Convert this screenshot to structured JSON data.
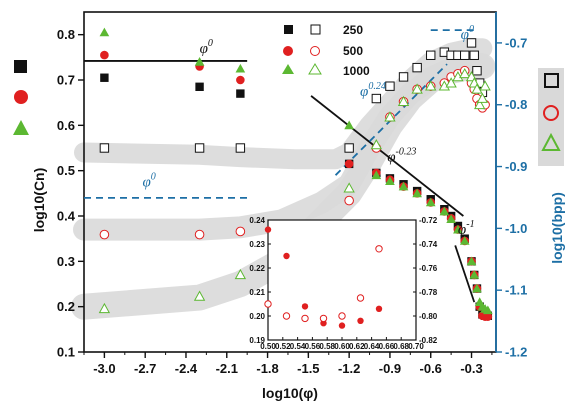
{
  "chart_data": {
    "type": "scatter",
    "xlabel": "log10(φ)",
    "ylabel_left": "log10(Cn)",
    "ylabel_right": "log10(bpp)",
    "x_ticks": [
      "-3.0",
      "-2.7",
      "-2.4",
      "-2.1",
      "-1.8",
      "-1.5",
      "-1.2",
      "-0.9",
      "-0.6",
      "-0.3"
    ],
    "xlim": [
      -3.15,
      -0.12
    ],
    "ylim_left": [
      0.1,
      0.85
    ],
    "y_ticks_left": [
      "0.1",
      "0.2",
      "0.3",
      "0.4",
      "0.5",
      "0.6",
      "0.7",
      "0.8"
    ],
    "ylim_right": [
      -1.2,
      -0.65
    ],
    "y_ticks_right": [
      "-0.7",
      "-0.8",
      "-0.9",
      "-1.0",
      "-1.1",
      "-1.2"
    ],
    "colors": {
      "n250": "#111111",
      "n500": "#e02020",
      "n1000": "#5cb832",
      "guide": "#1d6fa5",
      "band": "#d9d9d9"
    },
    "legend": {
      "filled_header": "",
      "open_header": "",
      "entries": [
        {
          "label": "250",
          "series": "n250"
        },
        {
          "label": "500",
          "series": "n500"
        },
        {
          "label": "1000",
          "series": "n1000"
        }
      ]
    },
    "series": [
      {
        "name": "250",
        "key": "n250",
        "axis": "left",
        "marker": "square",
        "filled": true,
        "x": [
          -3.0,
          -2.3,
          -2.0,
          -1.2,
          -1.0,
          -0.9,
          -0.8,
          -0.7,
          -0.6,
          -0.5,
          -0.45,
          -0.4,
          -0.35,
          -0.3,
          -0.28,
          -0.26,
          -0.24,
          -0.22,
          -0.2,
          -0.18
        ],
        "y": [
          0.705,
          0.685,
          0.67,
          0.515,
          0.495,
          0.483,
          0.47,
          0.455,
          0.437,
          0.415,
          0.4,
          0.378,
          0.35,
          0.3,
          0.27,
          0.24,
          0.2,
          0.183,
          0.18,
          0.18
        ]
      },
      {
        "name": "500",
        "key": "n500",
        "axis": "left",
        "marker": "circle",
        "filled": true,
        "x": [
          -3.0,
          -2.3,
          -2.0,
          -1.2,
          -1.0,
          -0.9,
          -0.8,
          -0.7,
          -0.6,
          -0.5,
          -0.45,
          -0.4,
          -0.35,
          -0.3,
          -0.28,
          -0.26,
          -0.24,
          -0.22,
          -0.2,
          -0.18
        ],
        "y": [
          0.755,
          0.73,
          0.7,
          0.515,
          0.495,
          0.48,
          0.465,
          0.45,
          0.43,
          0.41,
          0.395,
          0.37,
          0.345,
          0.3,
          0.27,
          0.24,
          0.2,
          0.18,
          0.178,
          0.178
        ]
      },
      {
        "name": "1000",
        "key": "n1000",
        "axis": "left",
        "marker": "triangle",
        "filled": true,
        "x": [
          -3.0,
          -2.3,
          -2.0,
          -1.2,
          -1.0,
          -0.9,
          -0.8,
          -0.7,
          -0.6,
          -0.5,
          -0.45,
          -0.4,
          -0.35,
          -0.3,
          -0.28,
          -0.26,
          -0.24,
          -0.22,
          -0.2,
          -0.18
        ],
        "y": [
          0.805,
          0.74,
          0.725,
          0.6,
          0.49,
          0.477,
          0.465,
          0.45,
          0.43,
          0.41,
          0.393,
          0.37,
          0.345,
          0.3,
          0.27,
          0.24,
          0.21,
          0.2,
          0.195,
          0.192
        ]
      },
      {
        "name": "250",
        "key": "n250",
        "axis": "right",
        "marker": "square",
        "filled": false,
        "x": [
          -3.0,
          -2.3,
          -2.0,
          -1.2,
          -1.0,
          -0.9,
          -0.8,
          -0.7,
          -0.6,
          -0.5,
          -0.45,
          -0.4,
          -0.35,
          -0.3,
          -0.28,
          -0.26,
          -0.24,
          -0.22
        ],
        "y": [
          -0.87,
          -0.87,
          -0.87,
          -0.87,
          -0.79,
          -0.77,
          -0.755,
          -0.74,
          -0.72,
          -0.715,
          -0.72,
          -0.72,
          -0.72,
          -0.7,
          -0.72,
          -0.745,
          -0.765,
          -0.78
        ]
      },
      {
        "name": "500",
        "key": "n500",
        "axis": "right",
        "marker": "circle",
        "filled": false,
        "x": [
          -3.0,
          -2.3,
          -2.0,
          -1.2,
          -1.0,
          -0.9,
          -0.8,
          -0.7,
          -0.6,
          -0.5,
          -0.45,
          -0.4,
          -0.35,
          -0.3,
          -0.28,
          -0.26,
          -0.24,
          -0.22,
          -0.2
        ],
        "y": [
          -1.01,
          -1.01,
          -1.005,
          -0.955,
          -0.87,
          -0.82,
          -0.795,
          -0.775,
          -0.77,
          -0.765,
          -0.755,
          -0.75,
          -0.745,
          -0.765,
          -0.775,
          -0.79,
          -0.8,
          -0.805,
          -0.8
        ]
      },
      {
        "name": "1000",
        "key": "n1000",
        "axis": "right",
        "marker": "triangle",
        "filled": false,
        "x": [
          -3.0,
          -2.3,
          -2.0,
          -1.2,
          -1.0,
          -0.9,
          -0.8,
          -0.7,
          -0.6,
          -0.5,
          -0.45,
          -0.4,
          -0.35,
          -0.3,
          -0.28,
          -0.26,
          -0.24,
          -0.22,
          -0.2
        ],
        "y": [
          -1.13,
          -1.11,
          -1.075,
          -0.935,
          -0.865,
          -0.82,
          -0.795,
          -0.775,
          -0.77,
          -0.77,
          -0.765,
          -0.755,
          -0.75,
          -0.755,
          -0.765,
          -0.775,
          -0.8,
          -0.79,
          -0.77
        ]
      }
    ],
    "annotations": [
      {
        "base": "φ",
        "exp": "0",
        "color": "#111111",
        "x": -2.3,
        "y_left": 0.76
      },
      {
        "base": "φ",
        "exp": "0",
        "color": "#1d6fa5",
        "x": -2.72,
        "y_left": 0.465
      },
      {
        "base": "φ",
        "exp": "0.24",
        "color": "#1d6fa5",
        "x": -1.12,
        "y_left": 0.665
      },
      {
        "base": "φ",
        "exp": "0",
        "color": "#1d6fa5",
        "x": -0.38,
        "y_left": 0.79
      },
      {
        "base": "φ",
        "exp": "-0.23",
        "color": "#111111",
        "x": -0.92,
        "y_left": 0.52
      },
      {
        "base": "φ",
        "exp": "-1",
        "color": "#111111",
        "x": -0.4,
        "y_left": 0.36
      }
    ],
    "guide_lines": [
      {
        "color": "#111111",
        "dash": false,
        "x": [
          -3.15,
          -1.95
        ],
        "y_left": [
          0.742,
          0.742
        ]
      },
      {
        "color": "#111111",
        "dash": false,
        "x": [
          -1.48,
          -0.36
        ],
        "y_left": [
          0.665,
          0.4
        ]
      },
      {
        "color": "#111111",
        "dash": false,
        "x": [
          -0.42,
          -0.28
        ],
        "y_left": [
          0.335,
          0.21
        ]
      },
      {
        "color": "#1d6fa5",
        "dash": true,
        "x": [
          -3.15,
          -1.95
        ],
        "y_left": [
          0.44,
          0.44
        ]
      },
      {
        "color": "#1d6fa5",
        "dash": true,
        "x": [
          -1.3,
          -0.48
        ],
        "y_left": [
          0.49,
          0.735
        ]
      },
      {
        "color": "#1d6fa5",
        "dash": true,
        "x": [
          -0.6,
          -0.28
        ],
        "y_left": [
          0.81,
          0.81
        ]
      }
    ],
    "bands": [
      {
        "x": [
          -3.15,
          -2.3,
          -2.0,
          -1.6,
          -1.3,
          -1.2,
          -1.05,
          -0.9,
          -0.75,
          -0.6,
          -0.45,
          -0.3,
          -0.22
        ],
        "y_left": [
          0.54,
          0.535,
          0.53,
          0.525,
          0.525,
          0.54,
          0.6,
          0.65,
          0.7,
          0.74,
          0.76,
          0.77,
          0.77
        ],
        "width": 20
      },
      {
        "x": [
          -3.15,
          -2.3,
          -2.0,
          -1.7,
          -1.4,
          -1.2,
          -1.05,
          -0.9,
          -0.75,
          -0.6,
          -0.45,
          -0.3,
          -0.22
        ],
        "y_left": [
          0.37,
          0.37,
          0.375,
          0.39,
          0.43,
          0.47,
          0.55,
          0.62,
          0.67,
          0.7,
          0.72,
          0.73,
          0.73
        ],
        "width": 22
      },
      {
        "x": [
          -3.15,
          -2.3,
          -2.0,
          -1.7,
          -1.4,
          -1.2,
          -1.05,
          -0.9,
          -0.75,
          -0.6,
          -0.45,
          -0.3,
          -0.22
        ],
        "y_left": [
          0.2,
          0.22,
          0.25,
          0.3,
          0.39,
          0.45,
          0.52,
          0.6,
          0.66,
          0.7,
          0.72,
          0.73,
          0.73
        ],
        "width": 26
      }
    ],
    "inset": {
      "type": "scatter",
      "xlim": [
        0.5,
        0.7
      ],
      "x_ticks": [
        "0.50",
        "0.52",
        "0.54",
        "0.56",
        "0.58",
        "0.60",
        "0.62",
        "0.64",
        "0.66",
        "0.68",
        "0.70"
      ],
      "ylim_left": [
        0.19,
        0.24
      ],
      "y_ticks_left": [
        "0.19",
        "0.20",
        "0.21",
        "0.22",
        "0.23",
        "0.24"
      ],
      "ylim_right": [
        -0.82,
        -0.72
      ],
      "y_ticks_right": [
        "-0.72",
        "-0.74",
        "-0.76",
        "-0.78",
        "-0.80",
        "-0.82"
      ],
      "filled": {
        "x": [
          0.5,
          0.525,
          0.55,
          0.575,
          0.6,
          0.625,
          0.65
        ],
        "y": [
          0.236,
          0.225,
          0.204,
          0.197,
          0.196,
          0.198,
          0.203
        ]
      },
      "open": {
        "x": [
          0.5,
          0.525,
          0.55,
          0.575,
          0.6,
          0.625,
          0.65
        ],
        "y": [
          -0.79,
          -0.8,
          -0.802,
          -0.802,
          -0.8,
          -0.785,
          -0.744
        ]
      }
    }
  }
}
